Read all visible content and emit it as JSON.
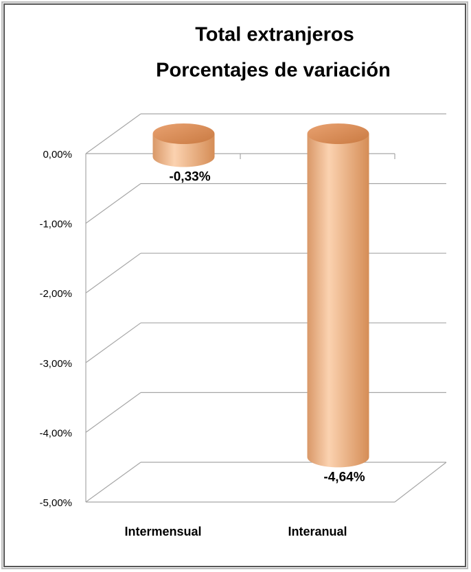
{
  "chart_data": {
    "type": "bar",
    "title": "Total extranjeros",
    "subtitle": "Porcentajes  de variación",
    "categories": [
      "Intermensual",
      "Interanual"
    ],
    "values": [
      -0.33,
      -4.64
    ],
    "value_labels": [
      "-0,33%",
      "-4,64%"
    ],
    "color": "#e8a874",
    "ylim": [
      -5,
      0
    ],
    "yticks": [
      {
        "value": 0,
        "label": "0,00%"
      },
      {
        "value": -1,
        "label": "-1,00%"
      },
      {
        "value": -2,
        "label": "-2,00%"
      },
      {
        "value": -3,
        "label": "-3,00%"
      },
      {
        "value": -4,
        "label": "-4,00%"
      },
      {
        "value": -5,
        "label": "-5,00%"
      }
    ],
    "grid": true
  }
}
